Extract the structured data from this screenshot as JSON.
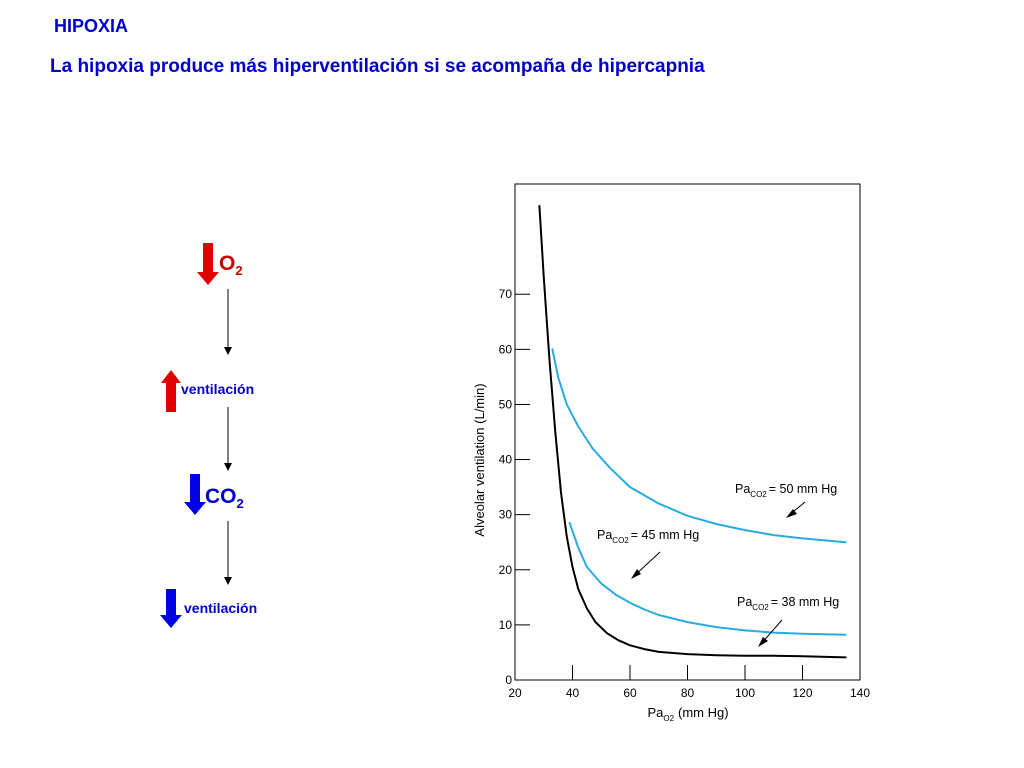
{
  "slide": {
    "title": "HIPOXIA",
    "subtitle": "La hipoxia produce más hiperventilación si se acompaña de hipercapnia"
  },
  "flow": {
    "o2": {
      "main": "O",
      "sub": "2",
      "arrow": "down",
      "color": "#e00000"
    },
    "ventilation_up": {
      "label": "ventilación",
      "arrow": "up",
      "color": "#e00000"
    },
    "co2": {
      "main": "CO",
      "sub": "2",
      "arrow": "down",
      "color": "#0000e0"
    },
    "ventilation_down": {
      "label": "ventilación",
      "arrow": "down",
      "color": "#0000e0"
    }
  },
  "chart_data": {
    "type": "line",
    "xlabel": "Pa",
    "xlabel_sub": "O2",
    "xlabel_unit": "(mm Hg)",
    "ylabel": "Alveolar ventilation (L/min)",
    "xlim": [
      20,
      140
    ],
    "ylim": [
      0,
      90
    ],
    "xticks": [
      20,
      40,
      60,
      80,
      100,
      120,
      140
    ],
    "yticks": [
      0,
      10,
      20,
      30,
      40,
      50,
      60,
      70
    ],
    "grid": false,
    "series": [
      {
        "name": "Pa CO2 = 38 mm Hg",
        "label_main": "Pa",
        "label_sub": "CO2",
        "label_rest": "= 38 mm Hg",
        "color": "#000000",
        "x": [
          28.5,
          30,
          32,
          34,
          36,
          38,
          40,
          42,
          45,
          48,
          52,
          56,
          60,
          65,
          70,
          80,
          90,
          100,
          110,
          120,
          135
        ],
        "y": [
          86,
          73,
          58,
          45,
          34,
          26,
          20.5,
          16.5,
          13,
          10.5,
          8.5,
          7.2,
          6.3,
          5.6,
          5.1,
          4.7,
          4.5,
          4.4,
          4.4,
          4.3,
          4.1
        ]
      },
      {
        "name": "Pa CO2 = 45 mm Hg",
        "label_main": "Pa",
        "label_sub": "CO2",
        "label_rest": "= 45 mm Hg",
        "color": "#29abe2",
        "x": [
          39,
          42,
          45,
          50,
          55,
          60,
          65,
          70,
          80,
          90,
          100,
          110,
          120,
          135
        ],
        "y": [
          28.5,
          24,
          20.5,
          17.5,
          15.5,
          14,
          12.8,
          11.8,
          10.5,
          9.6,
          9.0,
          8.6,
          8.4,
          8.2
        ]
      },
      {
        "name": "Pa CO2 = 50 mm Hg",
        "label_main": "Pa",
        "label_sub": "CO2",
        "label_rest": "= 50 mm Hg",
        "color": "#29abe2",
        "x": [
          33,
          35,
          38,
          42,
          47,
          53,
          60,
          70,
          80,
          90,
          100,
          110,
          120,
          135
        ],
        "y": [
          60,
          55,
          50,
          46,
          42,
          38.5,
          35,
          32,
          29.8,
          28.3,
          27.2,
          26.3,
          25.7,
          25
        ]
      }
    ]
  }
}
